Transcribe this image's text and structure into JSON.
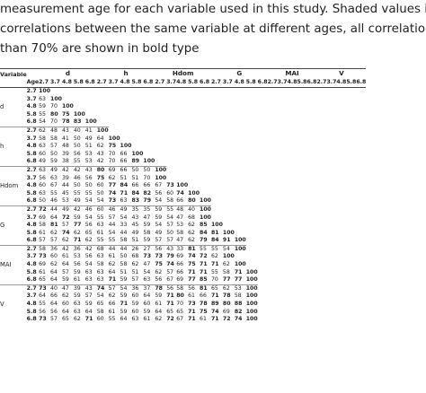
{
  "caption": {
    "lines": [
      "measurement age for each variable used in this study. Shaded values indicate",
      "correlations between the same variable at different ages, all correlation values larger",
      "than 70% are shown in bold type"
    ]
  },
  "table": {
    "variable_header": "Variable",
    "age_header": "Age",
    "groups": [
      {
        "name": "d",
        "code": "d"
      },
      {
        "name": "h",
        "code": "h"
      },
      {
        "name": "Hdom",
        "code": "Hdom"
      },
      {
        "name": "G",
        "code": "G"
      },
      {
        "name": "MAI",
        "code": "MAI"
      },
      {
        "name": "V",
        "code": "V"
      }
    ],
    "ages": [
      "2.7",
      "3.7",
      "4.8",
      "5.8",
      "6.8"
    ],
    "rows": [
      {
        "var": "",
        "age": "2.7",
        "values": [
          "100"
        ]
      },
      {
        "var": "",
        "age": "3.7",
        "values": [
          "63",
          "100"
        ]
      },
      {
        "var": "d",
        "age": "4.8",
        "values": [
          "59",
          "70",
          "100"
        ]
      },
      {
        "var": "",
        "age": "5.8",
        "values": [
          "55",
          "80",
          "75",
          "100"
        ]
      },
      {
        "var": "",
        "age": "6.8",
        "values": [
          "54",
          "70",
          "78",
          "83",
          "100"
        ]
      },
      {
        "var": "",
        "age": "2.7",
        "values": [
          "62",
          "48",
          "43",
          "40",
          "41",
          "100"
        ]
      },
      {
        "var": "",
        "age": "3.7",
        "values": [
          "58",
          "58",
          "41",
          "50",
          "49",
          "64",
          "100"
        ]
      },
      {
        "var": "h",
        "age": "4.8",
        "values": [
          "63",
          "57",
          "48",
          "50",
          "51",
          "62",
          "75",
          "100"
        ]
      },
      {
        "var": "",
        "age": "5.8",
        "values": [
          "60",
          "50",
          "39",
          "56",
          "53",
          "43",
          "70",
          "66",
          "100"
        ]
      },
      {
        "var": "",
        "age": "6.8",
        "values": [
          "49",
          "59",
          "38",
          "55",
          "53",
          "42",
          "70",
          "66",
          "89",
          "100"
        ]
      },
      {
        "var": "",
        "age": "2.7",
        "values": [
          "63",
          "49",
          "42",
          "42",
          "43",
          "80",
          "69",
          "66",
          "50",
          "50",
          "100"
        ]
      },
      {
        "var": "",
        "age": "3.7",
        "values": [
          "56",
          "63",
          "39",
          "46",
          "56",
          "75",
          "62",
          "51",
          "51",
          "70",
          "100"
        ]
      },
      {
        "var": "Hdom",
        "age": "4.8",
        "values": [
          "60",
          "67",
          "44",
          "50",
          "50",
          "60",
          "77",
          "84",
          "66",
          "66",
          "67",
          "73",
          "100"
        ]
      },
      {
        "var": "",
        "age": "5.8",
        "values": [
          "63",
          "55",
          "45",
          "55",
          "55",
          "50",
          "74",
          "71",
          "84",
          "82",
          "56",
          "60",
          "74",
          "100"
        ]
      },
      {
        "var": "",
        "age": "6.8",
        "values": [
          "50",
          "46",
          "53",
          "49",
          "54",
          "54",
          "73",
          "63",
          "83",
          "79",
          "54",
          "58",
          "66",
          "80",
          "100"
        ]
      },
      {
        "var": "",
        "age": "2.7",
        "values": [
          "72",
          "44",
          "49",
          "42",
          "46",
          "60",
          "46",
          "49",
          "35",
          "35",
          "59",
          "55",
          "48",
          "40",
          "100"
        ]
      },
      {
        "var": "",
        "age": "3.7",
        "values": [
          "69",
          "64",
          "72",
          "59",
          "54",
          "55",
          "57",
          "54",
          "43",
          "47",
          "59",
          "54",
          "47",
          "68",
          "100"
        ]
      },
      {
        "var": "G",
        "age": "4.8",
        "values": [
          "58",
          "81",
          "57",
          "77",
          "56",
          "63",
          "44",
          "33",
          "45",
          "59",
          "54",
          "57",
          "53",
          "62",
          "85",
          "100"
        ]
      },
      {
        "var": "",
        "age": "5.8",
        "values": [
          "61",
          "62",
          "74",
          "62",
          "65",
          "61",
          "54",
          "44",
          "49",
          "58",
          "49",
          "50",
          "58",
          "62",
          "84",
          "81",
          "100"
        ]
      },
      {
        "var": "",
        "age": "6.8",
        "values": [
          "57",
          "57",
          "62",
          "71",
          "62",
          "55",
          "55",
          "58",
          "51",
          "59",
          "57",
          "57",
          "47",
          "62",
          "79",
          "84",
          "91",
          "100"
        ]
      },
      {
        "var": "",
        "age": "2.7",
        "values": [
          "58",
          "36",
          "42",
          "36",
          "42",
          "68",
          "44",
          "44",
          "26",
          "27",
          "56",
          "43",
          "33",
          "81",
          "55",
          "55",
          "54",
          "100"
        ]
      },
      {
        "var": "",
        "age": "3.7",
        "values": [
          "73",
          "60",
          "61",
          "53",
          "56",
          "63",
          "61",
          "50",
          "68",
          "73",
          "73",
          "79",
          "69",
          "74",
          "72",
          "62",
          "100"
        ]
      },
      {
        "var": "MAI",
        "age": "4.8",
        "values": [
          "69",
          "62",
          "64",
          "56",
          "54",
          "58",
          "62",
          "58",
          "62",
          "47",
          "75",
          "74",
          "66",
          "75",
          "71",
          "71",
          "62",
          "100"
        ]
      },
      {
        "var": "",
        "age": "5.8",
        "values": [
          "61",
          "64",
          "57",
          "59",
          "63",
          "63",
          "64",
          "51",
          "51",
          "54",
          "62",
          "57",
          "66",
          "71",
          "71",
          "55",
          "58",
          "71",
          "100"
        ]
      },
      {
        "var": "",
        "age": "6.8",
        "values": [
          "65",
          "64",
          "59",
          "61",
          "63",
          "63",
          "71",
          "59",
          "57",
          "63",
          "56",
          "67",
          "69",
          "77",
          "85",
          "70",
          "77",
          "77",
          "100"
        ]
      },
      {
        "var": "",
        "age": "2.7",
        "values": [
          "73",
          "40",
          "47",
          "39",
          "43",
          "74",
          "57",
          "54",
          "36",
          "37",
          "78",
          "56",
          "58",
          "56",
          "81",
          "65",
          "62",
          "53",
          "100"
        ]
      },
      {
        "var": "",
        "age": "3.7",
        "values": [
          "64",
          "66",
          "62",
          "59",
          "57",
          "54",
          "62",
          "59",
          "60",
          "64",
          "59",
          "71",
          "80",
          "61",
          "66",
          "71",
          "78",
          "58",
          "100"
        ]
      },
      {
        "var": "V",
        "age": "4.8",
        "values": [
          "55",
          "64",
          "60",
          "63",
          "59",
          "65",
          "66",
          "71",
          "59",
          "60",
          "61",
          "71",
          "70",
          "73",
          "78",
          "89",
          "80",
          "88",
          "100"
        ]
      },
      {
        "var": "",
        "age": "5.8",
        "values": [
          "56",
          "56",
          "64",
          "63",
          "64",
          "58",
          "61",
          "59",
          "60",
          "59",
          "64",
          "65",
          "65",
          "71",
          "75",
          "74",
          "69",
          "82",
          "100"
        ]
      },
      {
        "var": "",
        "age": "6.8",
        "values": [
          "73",
          "57",
          "65",
          "62",
          "71",
          "60",
          "55",
          "64",
          "63",
          "61",
          "62",
          "72",
          "67",
          "71",
          "61",
          "71",
          "72",
          "74",
          "100"
        ]
      }
    ]
  }
}
